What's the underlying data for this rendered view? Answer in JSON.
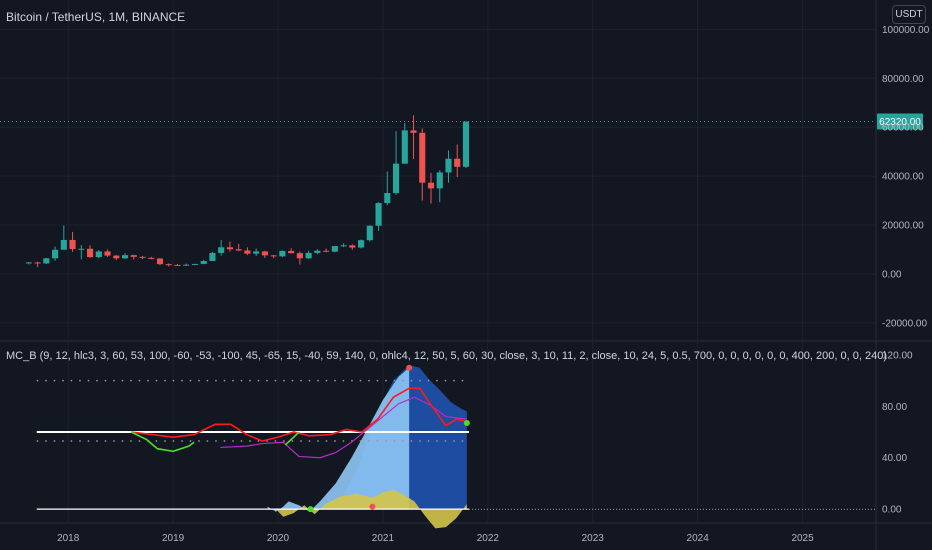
{
  "header": {
    "symbol_title": "Bitcoin / TetherUS, 1M, BINANCE",
    "currency": "USDT"
  },
  "indicator": {
    "legend": "MC_B (9, 12, hlc3, 3, 60, 53, 100, -60, -53, -100, 45, -65, 15, -40, 59, 140, 0, ohlc4, 12, 50, 5, 60, 30, close, 3, 10, 11, 2, close, 10, 24, 5, 0.5, 700, 0, 0, 0, 0, 0, 0, 400, 200, 0, 0, 240)"
  },
  "colors": {
    "background": "#131722",
    "up": "#26a69a",
    "down": "#ef5350",
    "price_badge": "#26a69a",
    "wave_dark": "#1e4fa8",
    "wave_light": "#8fc7f5",
    "money_flow": "#d4c44a",
    "line_red": "#ff1a1a",
    "line_purple": "#b52cc9",
    "line_green": "#4cdc2c"
  },
  "chart_data": [
    {
      "type": "candlestick",
      "title": "Bitcoin / TetherUS, 1M, BINANCE",
      "ylim": [
        -27000,
        112000
      ],
      "y_ticks": [
        "100000.00",
        "80000.00",
        "60000.00",
        "40000.00",
        "20000.00",
        "0.00",
        "-20000.00"
      ],
      "y_tick_values": [
        100000,
        80000,
        60000,
        40000,
        20000,
        0,
        -20000
      ],
      "last_price_label": "62320.00",
      "last_price": 62320,
      "x_ticks": [
        "2018",
        "2019",
        "2020",
        "2021",
        "2022",
        "2023",
        "2024",
        "2025"
      ],
      "x_tick_values": [
        2018,
        2019,
        2020,
        2021,
        2022,
        2023,
        2024,
        2025
      ],
      "xlim": [
        2017.35,
        2025.7
      ],
      "candles": [
        {
          "t": "2017-08",
          "o": 4300,
          "h": 4900,
          "l": 3900,
          "c": 4700
        },
        {
          "t": "2017-09",
          "o": 4700,
          "h": 5000,
          "l": 2800,
          "c": 4300
        },
        {
          "t": "2017-10",
          "o": 4300,
          "h": 6500,
          "l": 4100,
          "c": 6400
        },
        {
          "t": "2017-11",
          "o": 6400,
          "h": 11200,
          "l": 5400,
          "c": 9900
        },
        {
          "t": "2017-12",
          "o": 9900,
          "h": 19800,
          "l": 10000,
          "c": 13900
        },
        {
          "t": "2018-01",
          "o": 13900,
          "h": 17200,
          "l": 9000,
          "c": 10200
        },
        {
          "t": "2018-02",
          "o": 10200,
          "h": 11800,
          "l": 6000,
          "c": 10300
        },
        {
          "t": "2018-03",
          "o": 10300,
          "h": 11700,
          "l": 6600,
          "c": 6900
        },
        {
          "t": "2018-04",
          "o": 6900,
          "h": 9800,
          "l": 6400,
          "c": 9200
        },
        {
          "t": "2018-05",
          "o": 9200,
          "h": 10000,
          "l": 7000,
          "c": 7500
        },
        {
          "t": "2018-06",
          "o": 7500,
          "h": 7800,
          "l": 5700,
          "c": 6400
        },
        {
          "t": "2018-07",
          "o": 6400,
          "h": 8500,
          "l": 6100,
          "c": 7700
        },
        {
          "t": "2018-08",
          "o": 7700,
          "h": 7800,
          "l": 5900,
          "c": 7000
        },
        {
          "t": "2018-09",
          "o": 7000,
          "h": 7400,
          "l": 6100,
          "c": 6600
        },
        {
          "t": "2018-10",
          "o": 6600,
          "h": 7000,
          "l": 6000,
          "c": 6300
        },
        {
          "t": "2018-11",
          "o": 6300,
          "h": 6500,
          "l": 3600,
          "c": 4000
        },
        {
          "t": "2018-12",
          "o": 4000,
          "h": 4300,
          "l": 3100,
          "c": 3700
        },
        {
          "t": "2019-01",
          "o": 3700,
          "h": 4100,
          "l": 3300,
          "c": 3400
        },
        {
          "t": "2019-02",
          "o": 3400,
          "h": 4200,
          "l": 3300,
          "c": 3800
        },
        {
          "t": "2019-03",
          "o": 3800,
          "h": 4100,
          "l": 3700,
          "c": 4100
        },
        {
          "t": "2019-04",
          "o": 4100,
          "h": 5700,
          "l": 4000,
          "c": 5300
        },
        {
          "t": "2019-05",
          "o": 5300,
          "h": 9000,
          "l": 5300,
          "c": 8600
        },
        {
          "t": "2019-06",
          "o": 8600,
          "h": 13900,
          "l": 7500,
          "c": 10900
        },
        {
          "t": "2019-07",
          "o": 10900,
          "h": 13200,
          "l": 9100,
          "c": 10100
        },
        {
          "t": "2019-08",
          "o": 10100,
          "h": 12300,
          "l": 9300,
          "c": 9600
        },
        {
          "t": "2019-09",
          "o": 9600,
          "h": 10900,
          "l": 7700,
          "c": 8300
        },
        {
          "t": "2019-10",
          "o": 8300,
          "h": 10400,
          "l": 7300,
          "c": 9200
        },
        {
          "t": "2019-11",
          "o": 9200,
          "h": 9500,
          "l": 6500,
          "c": 7600
        },
        {
          "t": "2019-12",
          "o": 7600,
          "h": 7800,
          "l": 6400,
          "c": 7200
        },
        {
          "t": "2020-01",
          "o": 7200,
          "h": 9600,
          "l": 6900,
          "c": 9400
        },
        {
          "t": "2020-02",
          "o": 9400,
          "h": 10500,
          "l": 8400,
          "c": 8500
        },
        {
          "t": "2020-03",
          "o": 8500,
          "h": 9200,
          "l": 3800,
          "c": 6400
        },
        {
          "t": "2020-04",
          "o": 6400,
          "h": 9500,
          "l": 6200,
          "c": 8600
        },
        {
          "t": "2020-05",
          "o": 8600,
          "h": 10100,
          "l": 8100,
          "c": 9500
        },
        {
          "t": "2020-06",
          "o": 9500,
          "h": 10400,
          "l": 8900,
          "c": 9100
        },
        {
          "t": "2020-07",
          "o": 9100,
          "h": 11500,
          "l": 8900,
          "c": 11400
        },
        {
          "t": "2020-08",
          "o": 11400,
          "h": 12500,
          "l": 11000,
          "c": 11700
        },
        {
          "t": "2020-09",
          "o": 11700,
          "h": 12100,
          "l": 9900,
          "c": 10800
        },
        {
          "t": "2020-10",
          "o": 10800,
          "h": 14100,
          "l": 10400,
          "c": 13800
        },
        {
          "t": "2020-11",
          "o": 13800,
          "h": 19900,
          "l": 13200,
          "c": 19700
        },
        {
          "t": "2020-12",
          "o": 19700,
          "h": 29300,
          "l": 17600,
          "c": 29000
        },
        {
          "t": "2021-01",
          "o": 29000,
          "h": 41900,
          "l": 28100,
          "c": 33100
        },
        {
          "t": "2021-02",
          "o": 33100,
          "h": 58400,
          "l": 32300,
          "c": 45100
        },
        {
          "t": "2021-03",
          "o": 45100,
          "h": 61800,
          "l": 45000,
          "c": 58700
        },
        {
          "t": "2021-04",
          "o": 58700,
          "h": 64900,
          "l": 47000,
          "c": 57700
        },
        {
          "t": "2021-05",
          "o": 57700,
          "h": 59500,
          "l": 30000,
          "c": 37300
        },
        {
          "t": "2021-06",
          "o": 37300,
          "h": 41300,
          "l": 28800,
          "c": 35000
        },
        {
          "t": "2021-07",
          "o": 35000,
          "h": 42400,
          "l": 29300,
          "c": 41500
        },
        {
          "t": "2021-08",
          "o": 41500,
          "h": 50500,
          "l": 37300,
          "c": 47100
        },
        {
          "t": "2021-09",
          "o": 47100,
          "h": 52900,
          "l": 39600,
          "c": 43800
        },
        {
          "t": "2021-10",
          "o": 43800,
          "h": 62300,
          "l": 43300,
          "c": 62320
        }
      ]
    },
    {
      "type": "area",
      "title": "MC_B",
      "ylim": [
        -10,
        130
      ],
      "y_ticks": [
        "120.00",
        "80.00",
        "40.00",
        "0.00"
      ],
      "y_tick_values": [
        120,
        80,
        40,
        0
      ],
      "levels": {
        "white_line": 60,
        "dotted_top": 100,
        "dotted_mid": 53,
        "zero_line": 0
      },
      "wave_dark": {
        "x": [
          2020.55,
          2020.75,
          2020.92,
          2021.1,
          2021.25,
          2021.35,
          2021.45,
          2021.55,
          2021.65,
          2021.75,
          2021.8
        ],
        "y": [
          0,
          30,
          70,
          100,
          112,
          110,
          100,
          92,
          83,
          78,
          76
        ]
      },
      "wave_light": {
        "x": [
          2019.9,
          2019.98,
          2020.05,
          2020.1,
          2020.2,
          2020.3,
          2020.4,
          2020.55,
          2020.7,
          2020.85,
          2021.0,
          2021.15,
          2021.25
        ],
        "y": [
          2,
          -2,
          2,
          6,
          3,
          -2,
          6,
          20,
          40,
          62,
          85,
          103,
          110
        ]
      },
      "money_flow": {
        "x": [
          2019.98,
          2020.05,
          2020.15,
          2020.25,
          2020.35,
          2020.45,
          2020.6,
          2020.75,
          2020.9,
          2021.0,
          2021.1,
          2021.2,
          2021.3,
          2021.4,
          2021.5,
          2021.6,
          2021.7,
          2021.8
        ],
        "y": [
          0,
          -6,
          -3,
          3,
          -4,
          4,
          10,
          12,
          9,
          13,
          15,
          11,
          6,
          -5,
          -15,
          -14,
          -7,
          4
        ]
      },
      "red_line": {
        "x": [
          2018.6,
          2018.8,
          2019.0,
          2019.2,
          2019.4,
          2019.55,
          2019.7,
          2019.85,
          2020.0,
          2020.15,
          2020.3,
          2020.5,
          2020.65,
          2020.8,
          2020.95,
          2021.1,
          2021.25,
          2021.35,
          2021.45,
          2021.6,
          2021.7,
          2021.8
        ],
        "y": [
          60,
          58,
          56,
          58,
          66,
          66,
          58,
          53,
          56,
          60,
          57,
          58,
          62,
          60,
          70,
          87,
          94,
          94,
          82,
          65,
          70,
          68
        ]
      },
      "purple_line": {
        "x": [
          2019.45,
          2019.7,
          2019.85,
          2020.05,
          2020.2,
          2020.4,
          2020.55,
          2020.7,
          2020.85,
          2021.0,
          2021.15,
          2021.3,
          2021.45,
          2021.6,
          2021.8
        ],
        "y": [
          48,
          49,
          51,
          52,
          41,
          40,
          44,
          52,
          62,
          72,
          82,
          87,
          81,
          72,
          70
        ]
      },
      "green_line": {
        "x": [
          2018.6,
          2018.75,
          2018.85,
          2019.0,
          2019.15,
          2019.2
        ],
        "y": [
          60,
          54,
          47,
          45,
          49,
          52
        ]
      },
      "green_line_2": {
        "x": [
          2020.07,
          2020.15,
          2020.2
        ],
        "y": [
          50,
          56,
          60
        ]
      },
      "dots": [
        {
          "x": 2020.9,
          "y": 2,
          "color": "#ef5350"
        },
        {
          "x": 2020.31,
          "y": 0,
          "color": "#4cdc2c"
        },
        {
          "x": 2021.25,
          "y": 110,
          "color": "#ef5350"
        },
        {
          "x": 2021.8,
          "y": 67,
          "color": "#4cdc2c"
        }
      ]
    }
  ]
}
